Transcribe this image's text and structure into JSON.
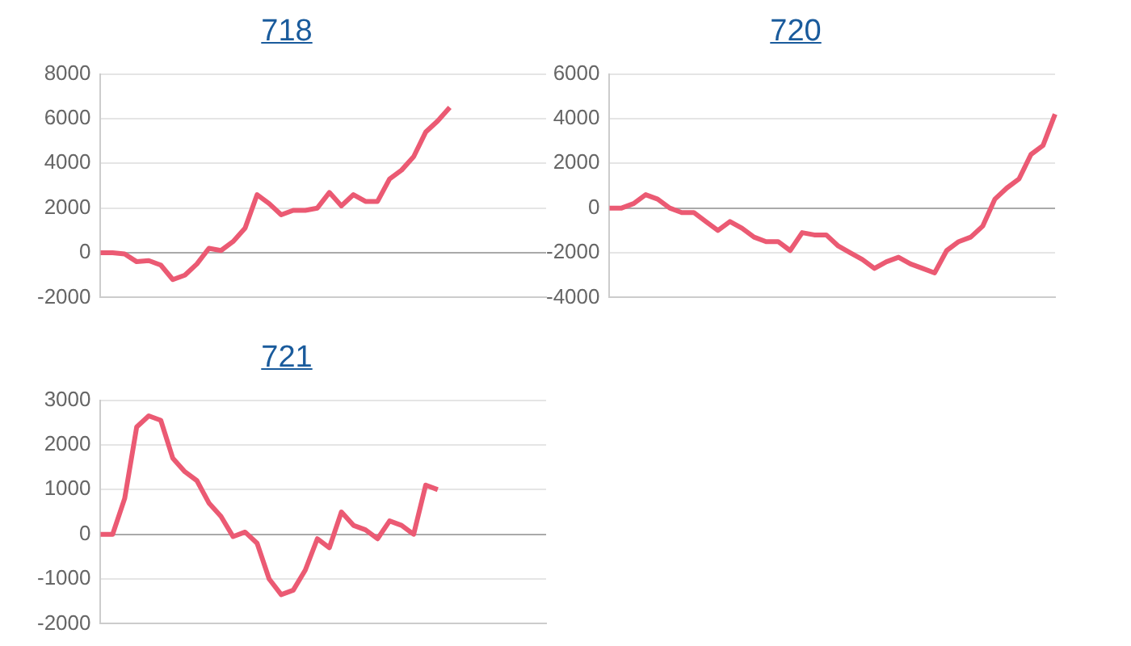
{
  "chart_data": [
    {
      "type": "line",
      "title": "718",
      "categories": [
        null,
        null,
        null,
        null,
        null,
        null,
        null,
        null,
        null,
        null,
        null,
        null,
        null,
        null,
        null,
        null,
        null,
        null,
        null,
        null,
        null,
        null,
        null,
        null,
        null,
        null,
        null,
        null,
        null,
        null,
        null,
        null,
        null,
        null,
        null,
        null,
        null,
        null
      ],
      "series": [
        {
          "color": "#eb5a73",
          "values": [
            0,
            0,
            -50,
            -400,
            -350,
            -550,
            -1200,
            -1000,
            -500,
            200,
            100,
            500,
            1100,
            2600,
            2200,
            1700,
            1900,
            1900,
            2000,
            2700,
            2100,
            2600,
            2300,
            2300,
            3300,
            3700,
            4300,
            5400,
            5900,
            6500,
            null,
            null,
            null,
            null,
            null,
            null,
            null,
            null
          ]
        }
      ],
      "ylim": [
        -2000,
        8000
      ],
      "yticks": [
        -2000,
        0,
        2000,
        4000,
        6000,
        8000
      ],
      "grid": "y",
      "tick_labels": "y",
      "marker": "none",
      "line_style": "solid",
      "legend": false
    },
    {
      "type": "line",
      "title": "720",
      "categories": [
        null,
        null,
        null,
        null,
        null,
        null,
        null,
        null,
        null,
        null,
        null,
        null,
        null,
        null,
        null,
        null,
        null,
        null,
        null,
        null,
        null,
        null,
        null,
        null,
        null,
        null,
        null,
        null,
        null,
        null,
        null,
        null,
        null,
        null,
        null,
        null,
        null,
        null
      ],
      "series": [
        {
          "color": "#eb5a73",
          "values": [
            0,
            0,
            200,
            600,
            400,
            0,
            -200,
            -200,
            -600,
            -1000,
            -600,
            -900,
            -1300,
            -1500,
            -1500,
            -1900,
            -1100,
            -1200,
            -1200,
            -1700,
            -2000,
            -2300,
            -2700,
            -2400,
            -2200,
            -2500,
            -2700,
            -2900,
            -1900,
            -1500,
            -1300,
            -800,
            400,
            900,
            1300,
            2400,
            2800,
            4200
          ]
        }
      ],
      "ylim": [
        -4000,
        6000
      ],
      "yticks": [
        -4000,
        -2000,
        0,
        2000,
        4000,
        6000
      ],
      "grid": "y",
      "tick_labels": "y",
      "marker": "none",
      "line_style": "solid",
      "legend": false
    },
    {
      "type": "line",
      "title": "721",
      "categories": [
        null,
        null,
        null,
        null,
        null,
        null,
        null,
        null,
        null,
        null,
        null,
        null,
        null,
        null,
        null,
        null,
        null,
        null,
        null,
        null,
        null,
        null,
        null,
        null,
        null,
        null,
        null,
        null,
        null,
        null,
        null,
        null,
        null,
        null,
        null,
        null,
        null,
        null
      ],
      "series": [
        {
          "color": "#eb5a73",
          "values": [
            0,
            0,
            800,
            2400,
            2650,
            2550,
            1700,
            1400,
            1200,
            700,
            400,
            -50,
            50,
            -200,
            -1000,
            -1350,
            -1250,
            -800,
            -100,
            -300,
            500,
            200,
            100,
            -100,
            300,
            200,
            0,
            1100,
            1000,
            null,
            null,
            null,
            null,
            null,
            null,
            null,
            null,
            null
          ]
        }
      ],
      "ylim": [
        -2000,
        3000
      ],
      "yticks": [
        -2000,
        -1000,
        0,
        1000,
        2000,
        3000
      ],
      "grid": "y",
      "tick_labels": "y",
      "marker": "none",
      "line_style": "solid",
      "legend": false
    }
  ]
}
